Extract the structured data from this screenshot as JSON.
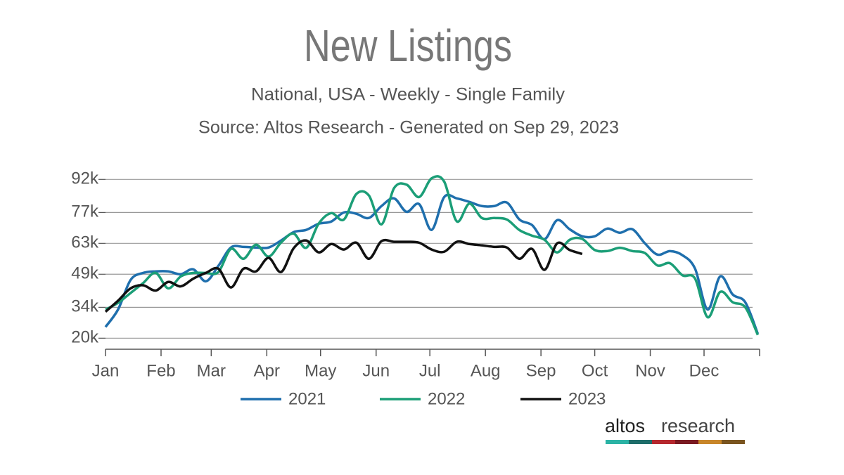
{
  "chart_data": {
    "type": "line",
    "title": "New Listings",
    "subtitle": "National, USA - Weekly - Single Family",
    "source": "Source: Altos Research - Generated on Sep 29, 2023",
    "logo": [
      "altos",
      "research"
    ],
    "x": [
      0,
      7,
      14,
      21,
      28,
      35,
      42,
      49,
      56,
      63,
      70,
      77,
      84,
      91,
      98,
      105,
      112,
      119,
      126,
      133,
      140,
      147,
      154,
      161,
      168,
      175,
      182,
      189,
      196,
      203,
      210,
      217,
      224,
      231,
      238,
      245,
      252,
      259,
      266,
      273,
      280,
      287,
      294,
      301,
      308,
      315,
      322,
      329,
      336,
      343,
      350,
      357,
      364
    ],
    "xlim": [
      0,
      365
    ],
    "xticks": [
      {
        "value": 0,
        "label": "Jan"
      },
      {
        "value": 31,
        "label": "Feb"
      },
      {
        "value": 59,
        "label": "Mar"
      },
      {
        "value": 90,
        "label": "Apr"
      },
      {
        "value": 120,
        "label": "May"
      },
      {
        "value": 151,
        "label": "Jun"
      },
      {
        "value": 181,
        "label": "Jul"
      },
      {
        "value": 212,
        "label": "Aug"
      },
      {
        "value": 243,
        "label": "Sep"
      },
      {
        "value": 273,
        "label": "Oct"
      },
      {
        "value": 304,
        "label": "Nov"
      },
      {
        "value": 334,
        "label": "Dec"
      }
    ],
    "ylim": [
      15000,
      92000
    ],
    "yticks": [
      {
        "value": 20000,
        "label": "20k"
      },
      {
        "value": 34000,
        "label": "34k"
      },
      {
        "value": 49000,
        "label": "49k"
      },
      {
        "value": 63000,
        "label": "63k"
      },
      {
        "value": 77000,
        "label": "77k"
      },
      {
        "value": 92000,
        "label": "92k"
      }
    ],
    "grid": true,
    "legend": "bottom",
    "series": [
      {
        "name": "2021",
        "color": "#1f6fad",
        "values": [
          25100,
          33000,
          46400,
          49600,
          50300,
          50300,
          49000,
          51200,
          45800,
          52800,
          61100,
          61400,
          61100,
          61100,
          64300,
          68100,
          69100,
          71900,
          72900,
          77000,
          76400,
          74500,
          79900,
          83400,
          77300,
          80800,
          69100,
          84000,
          83400,
          81800,
          79900,
          79900,
          81500,
          73800,
          71300,
          64900,
          73500,
          69400,
          66200,
          66200,
          69700,
          67800,
          69400,
          63000,
          57900,
          59500,
          57600,
          51500,
          33000,
          48000,
          39800,
          36300,
          22000
        ]
      },
      {
        "name": "2022",
        "color": "#1b9e77",
        "values": [
          33000,
          36000,
          40500,
          45000,
          49600,
          42600,
          48000,
          49600,
          49600,
          50000,
          60500,
          56000,
          62400,
          57000,
          63400,
          67400,
          61000,
          72000,
          76700,
          73800,
          85400,
          84700,
          71600,
          88000,
          89600,
          84000,
          92500,
          91000,
          73000,
          81000,
          74500,
          74500,
          73800,
          69000,
          66500,
          64600,
          58900,
          64600,
          65000,
          60000,
          59500,
          61000,
          59500,
          58600,
          53000,
          54000,
          48500,
          47000,
          29500,
          41000,
          36300,
          34000,
          21500
        ]
      },
      {
        "name": "2023",
        "color": "#111111",
        "values": [
          32000,
          37000,
          42600,
          44000,
          41600,
          45500,
          43500,
          47000,
          49600,
          51500,
          43000,
          51500,
          50300,
          56400,
          50000,
          60800,
          64300,
          58900,
          62700,
          60200,
          63300,
          56000,
          64000,
          63700,
          63700,
          63300,
          60200,
          59200,
          63700,
          62700,
          62100,
          61400,
          61100,
          56000,
          60500,
          51000,
          63000,
          60000,
          58200,
          null,
          null,
          null,
          null,
          null,
          null,
          null,
          null,
          null,
          null,
          null,
          null,
          null,
          null
        ]
      }
    ]
  }
}
